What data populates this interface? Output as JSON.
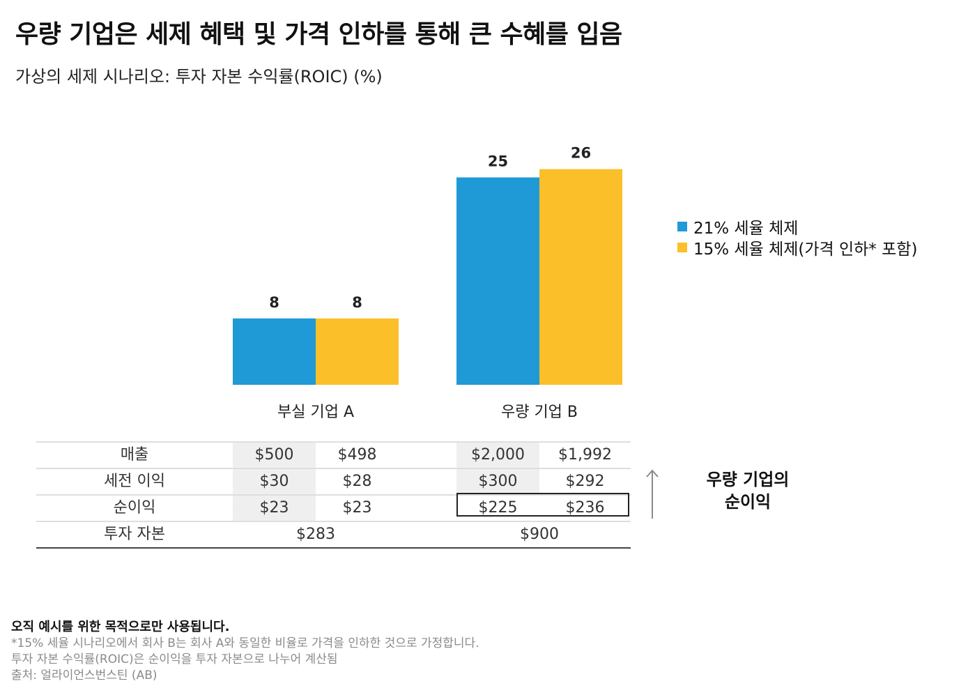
{
  "title": "우량 기업은 세제 혜택 및 가격 인하를 통해 큰 수혜를 입음",
  "subtitle": "가상의 세제 시나리오: 투자 자본 수익률(ROIC) (%)",
  "colors": {
    "blue": "#1F9AD6",
    "yellow": "#FBBF2A"
  },
  "chart_data": {
    "type": "bar",
    "categories": [
      "부실 기업 A",
      "우량 기업 B"
    ],
    "series": [
      {
        "name": "21% 세율 체제",
        "values": [
          8,
          25
        ]
      },
      {
        "name": "15% 세율 체제(가격 인하* 포함)",
        "values": [
          8,
          26
        ]
      }
    ],
    "ylim": [
      0,
      27
    ],
    "legend_position": "right",
    "grid": false
  },
  "legend": [
    {
      "label": "21% 세율 체제"
    },
    {
      "label": "15% 세율 체제(가격 인하* 포함)"
    }
  ],
  "table": {
    "rows": [
      {
        "label": "매출",
        "a1": "$500",
        "a2": "$498",
        "b1": "$2,000",
        "b2": "$1,992"
      },
      {
        "label": "세전 이익",
        "a1": "$30",
        "a2": "$28",
        "b1": "$300",
        "b2": "$292"
      },
      {
        "label": "순이익",
        "a1": "$23",
        "a2": "$23",
        "b1": "$225",
        "b2": "$236"
      }
    ],
    "capital": {
      "label": "투자 자본",
      "a": "$283",
      "b": "$900"
    }
  },
  "callout": {
    "line1": "우량 기업의",
    "line2": "순이익",
    "icon": "up-arrow-icon"
  },
  "footer": {
    "bold": "오직 예시를 위한 목적으로만 사용됩니다.",
    "note1": "*15% 세율 시나리오에서 회사 B는 회사 A와 동일한 비율로 가격을 인하한 것으로 가정합니다.",
    "note2": "투자 자본 수익률(ROIC)은 순이익을 투자 자본으로 나누어 계산됨",
    "note3": "출처: 얼라이언스번스틴 (AB)"
  }
}
